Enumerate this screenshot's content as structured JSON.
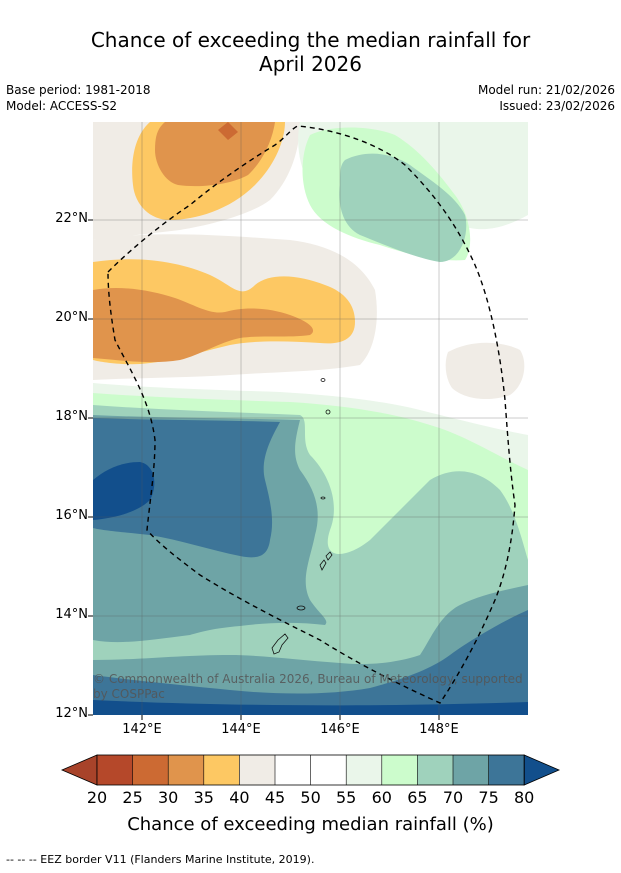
{
  "header": {
    "title_line1": "Chance of exceeding the median rainfall for",
    "title_line2": "April 2026",
    "base_period": "Base period: 1981-2018",
    "model": "Model: ACCESS-S2",
    "model_run": "Model run: 21/02/2026",
    "issued": "Issued: 23/02/2026"
  },
  "map": {
    "lat_labels": [
      "22°N",
      "20°N",
      "18°N",
      "16°N",
      "14°N",
      "12°N"
    ],
    "lon_labels": [
      "142°E",
      "144°E",
      "146°E",
      "148°E"
    ],
    "copyright_line1": "© Commonwealth of Australia 2026, Bureau of Meteorology, supported",
    "copyright_line2": "by COSPPac"
  },
  "colorbar": {
    "ticks": [
      "20",
      "25",
      "30",
      "35",
      "40",
      "45",
      "50",
      "55",
      "60",
      "65",
      "70",
      "75",
      "80"
    ],
    "colors": [
      "#a8432a",
      "#b5482a",
      "#cc6a33",
      "#e0944c",
      "#fdc863",
      "#f0ece6",
      "#ffffff",
      "#ffffff",
      "#eaf6ea",
      "#ccfccc",
      "#9fd2bc",
      "#6ea4a6",
      "#3d7598",
      "#124f8c"
    ],
    "title": "Chance of exceeding median rainfall (%)"
  },
  "footnote": "--  --  -- EEZ border V11 (Flanders Marine Institute, 2019)."
}
